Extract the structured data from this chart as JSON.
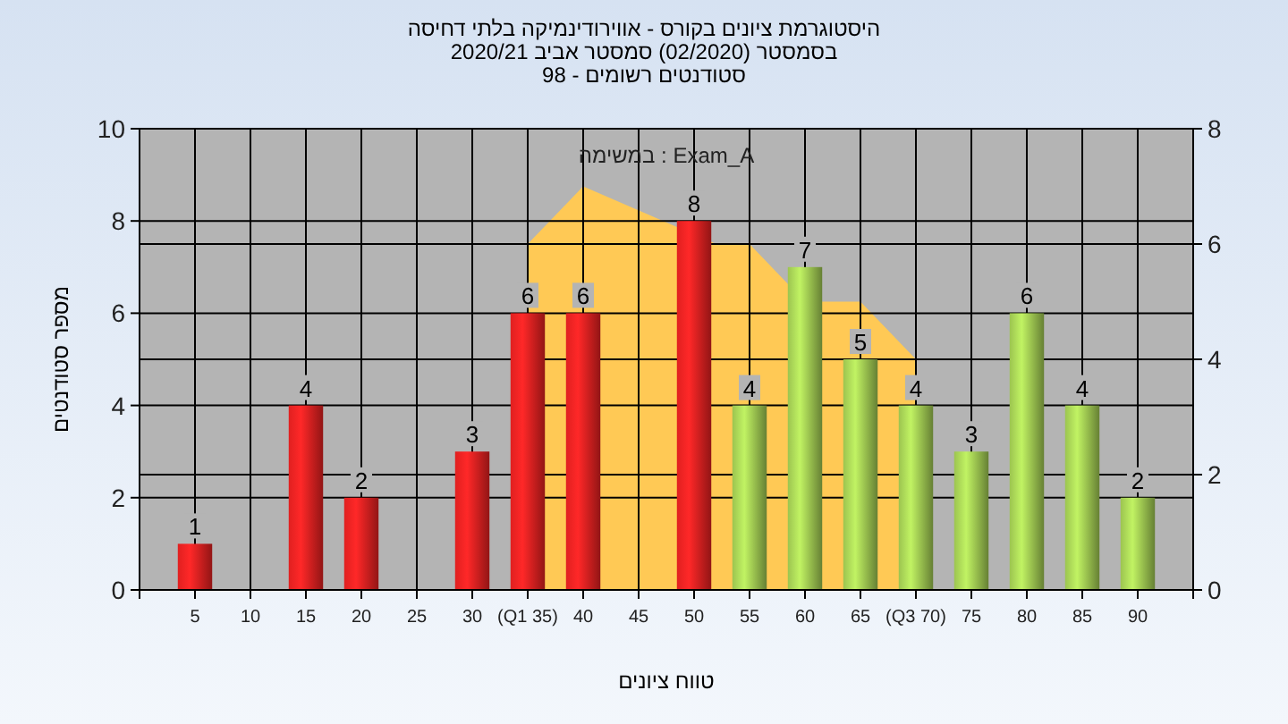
{
  "chart_data": {
    "type": "bar",
    "title": "היסטוגרמת ציונים בקורס - אווירודינמיקה בלתי דחיסה",
    "subtitle": "בסמסטר  (02/2020)  סמסטר אביב 2020/21\nסטודנטים רשומים - 98",
    "xlabel": "טווח ציונים",
    "ylabel": "מספר סטודנטים",
    "annotations": [
      "במשימה : Exam_A"
    ],
    "x": [
      5,
      15,
      20,
      30,
      35,
      40,
      50,
      55,
      60,
      65,
      70,
      75,
      80,
      85,
      90
    ],
    "values": [
      1,
      4,
      2,
      3,
      6,
      6,
      8,
      4,
      7,
      5,
      4,
      3,
      6,
      4,
      2
    ],
    "colors": [
      "#e02020",
      "#e02020",
      "#e02020",
      "#e02020",
      "#e02020",
      "#e02020",
      "#e02020",
      "#9cc450",
      "#9cc450",
      "#9cc450",
      "#9cc450",
      "#9cc450",
      "#9cc450",
      "#9cc450",
      "#9cc450"
    ],
    "series": [
      {
        "type": "area",
        "axis": "y2",
        "color": "#ffc955",
        "x": [
          35,
          40,
          52,
          55,
          58.5,
          61.5,
          65,
          70
        ],
        "values": [
          6,
          7,
          6,
          6,
          5.3,
          5,
          5,
          4
        ]
      }
    ],
    "value_labels": [
      "1",
      "4",
      "2",
      "3",
      "6",
      "6",
      "8",
      "4",
      "7",
      "5",
      "4",
      "3",
      "6",
      "4",
      "2"
    ],
    "grid": true,
    "xlim": [
      0,
      95
    ],
    "xticks": [
      {
        "value": 0,
        "label": null
      },
      5,
      10,
      15,
      20,
      25,
      30,
      {
        "value": 35,
        "label": "(Q1 35)"
      },
      40,
      45,
      50,
      55,
      60,
      65,
      {
        "value": 70,
        "label": "(Q3 70)"
      },
      75,
      80,
      85,
      90,
      {
        "value": 95,
        "label": null
      }
    ],
    "ylim": [
      0,
      10
    ],
    "yticks": [
      0,
      2,
      4,
      6,
      8,
      10
    ],
    "y2lim": [
      0,
      8
    ],
    "y2ticks": [
      0,
      2,
      4,
      6,
      8
    ]
  }
}
